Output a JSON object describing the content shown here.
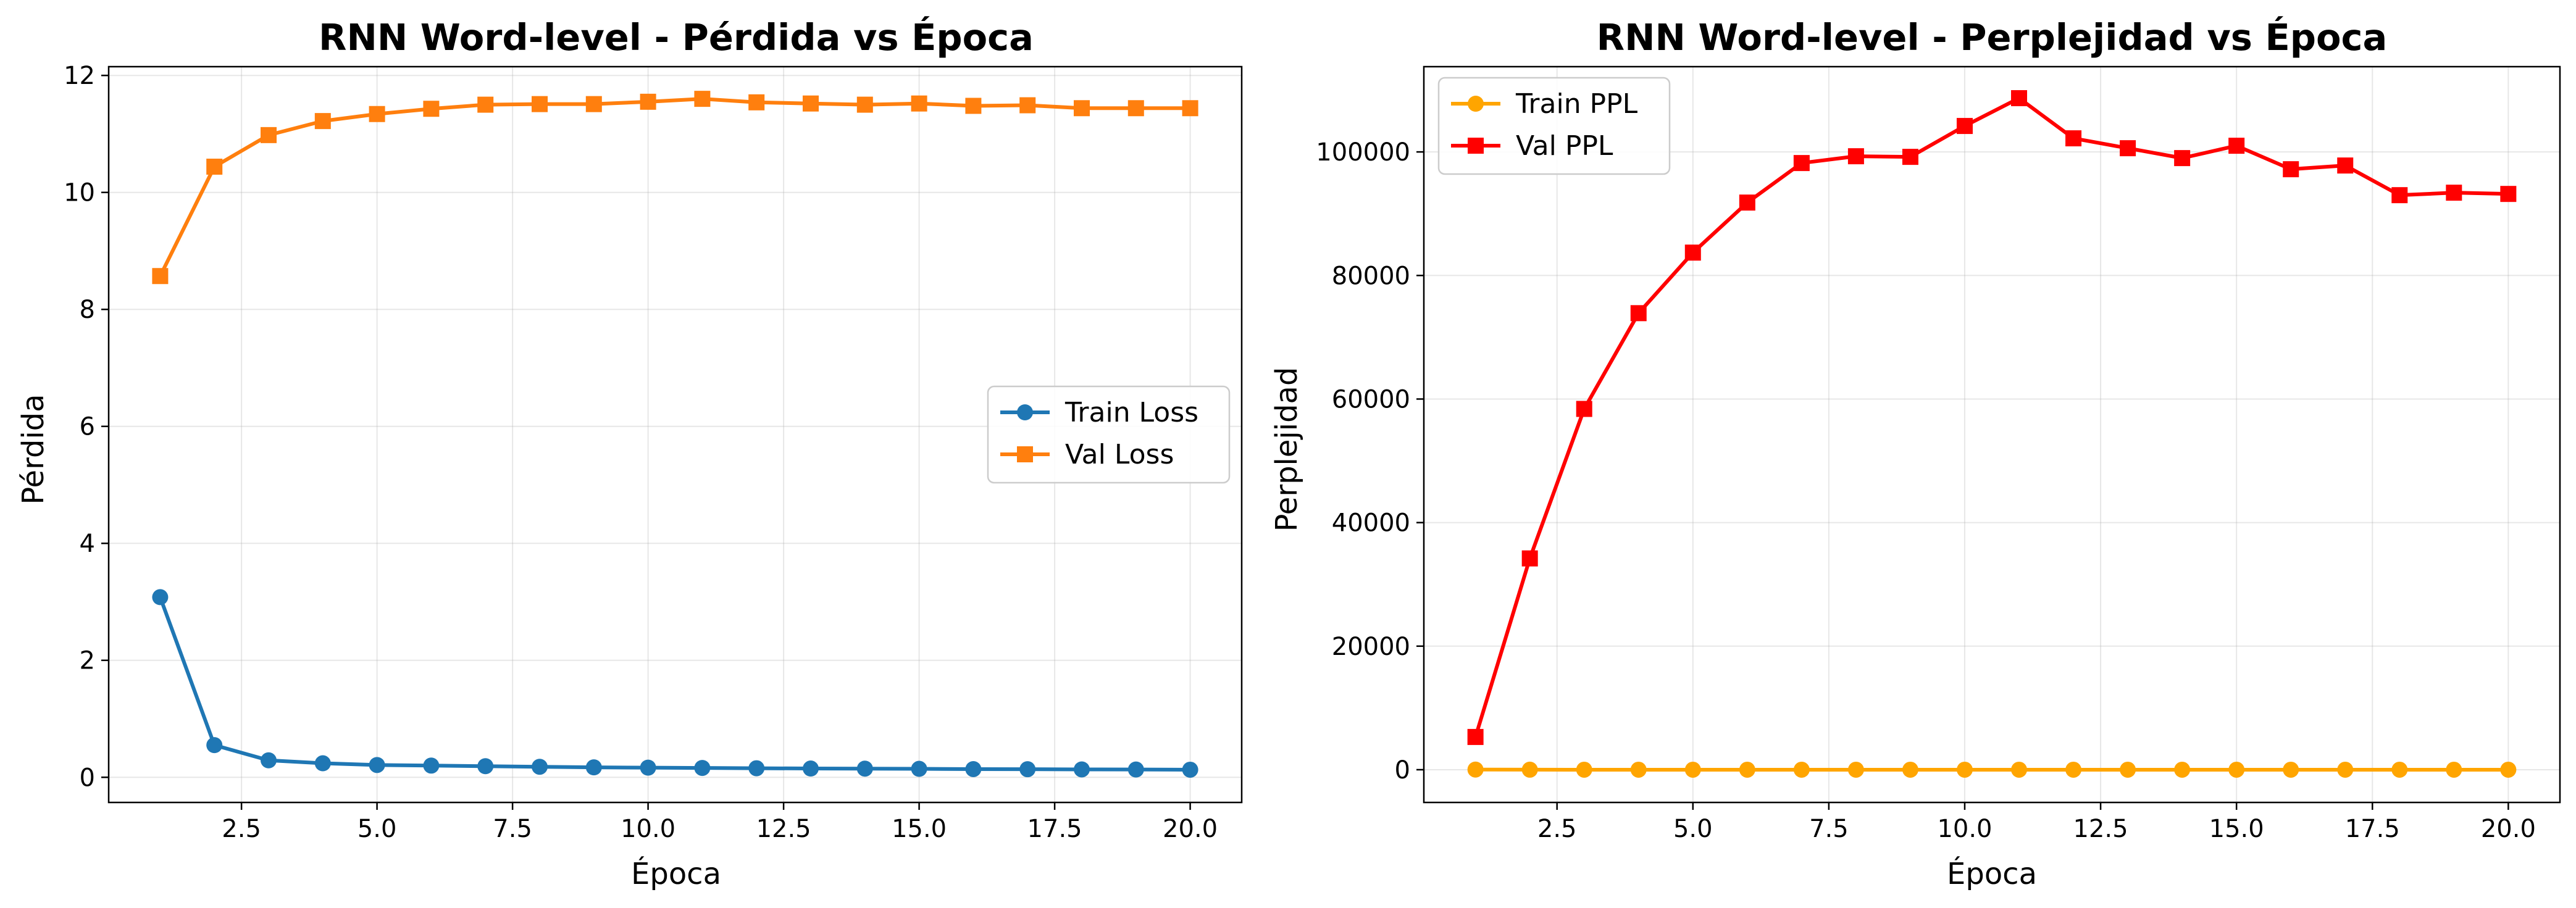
{
  "chart_data": [
    {
      "type": "line",
      "title": "RNN Word-level - Pérdida vs Época",
      "xlabel": "Época",
      "ylabel": "Pérdida",
      "xlim": [
        0.05,
        20.95
      ],
      "ylim": [
        -0.43,
        12.15
      ],
      "xticks": [
        "2.5",
        "5.0",
        "7.5",
        "10.0",
        "12.5",
        "15.0",
        "17.5",
        "20.0"
      ],
      "yticks": [
        "0",
        "2",
        "4",
        "6",
        "8",
        "10",
        "12"
      ],
      "xtick_values": [
        2.5,
        5,
        7.5,
        10,
        12.5,
        15,
        17.5,
        20
      ],
      "ytick_values": [
        0,
        2,
        4,
        6,
        8,
        10,
        12
      ],
      "grid": true,
      "legend_position": "center-right",
      "x": [
        1,
        2,
        3,
        4,
        5,
        6,
        7,
        8,
        9,
        10,
        11,
        12,
        13,
        14,
        15,
        16,
        17,
        18,
        19,
        20
      ],
      "series": [
        {
          "name": "Train Loss",
          "color": "#1f77b4",
          "marker": "circle",
          "values": [
            3.08,
            0.55,
            0.29,
            0.24,
            0.21,
            0.2,
            0.19,
            0.18,
            0.17,
            0.165,
            0.16,
            0.155,
            0.15,
            0.148,
            0.145,
            0.14,
            0.138,
            0.135,
            0.133,
            0.13
          ]
        },
        {
          "name": "Val Loss",
          "color": "#ff7f0e",
          "marker": "square",
          "values": [
            8.57,
            10.44,
            10.98,
            11.22,
            11.34,
            11.43,
            11.5,
            11.51,
            11.51,
            11.55,
            11.6,
            11.54,
            11.52,
            11.5,
            11.52,
            11.48,
            11.49,
            11.44,
            11.44,
            11.44
          ]
        }
      ]
    },
    {
      "type": "line",
      "title": "RNN Word-level - Perplejidad vs Época",
      "xlabel": "Época",
      "ylabel": "Perplejidad",
      "xlim": [
        0.05,
        20.95
      ],
      "ylim": [
        -5300,
        113800
      ],
      "xticks": [
        "2.5",
        "5.0",
        "7.5",
        "10.0",
        "12.5",
        "15.0",
        "17.5",
        "20.0"
      ],
      "yticks": [
        "0",
        "20000",
        "40000",
        "60000",
        "80000",
        "100000"
      ],
      "xtick_values": [
        2.5,
        5,
        7.5,
        10,
        12.5,
        15,
        17.5,
        20
      ],
      "ytick_values": [
        0,
        20000,
        40000,
        60000,
        80000,
        100000
      ],
      "grid": true,
      "legend_position": "top-left",
      "x": [
        1,
        2,
        3,
        4,
        5,
        6,
        7,
        8,
        9,
        10,
        11,
        12,
        13,
        14,
        15,
        16,
        17,
        18,
        19,
        20
      ],
      "series": [
        {
          "name": "Train PPL",
          "color": "#ffa500",
          "marker": "circle",
          "values": [
            22,
            2,
            1,
            1,
            1,
            1,
            1,
            1,
            1,
            1,
            1,
            1,
            1,
            1,
            1,
            1,
            1,
            1,
            1,
            1
          ]
        },
        {
          "name": "Val PPL",
          "color": "#ff0000",
          "marker": "square",
          "values": [
            5300,
            34200,
            58400,
            73900,
            83700,
            91800,
            98200,
            99300,
            99200,
            104200,
            108700,
            102200,
            100600,
            99000,
            101000,
            97200,
            97800,
            93000,
            93400,
            93200
          ]
        }
      ]
    }
  ]
}
